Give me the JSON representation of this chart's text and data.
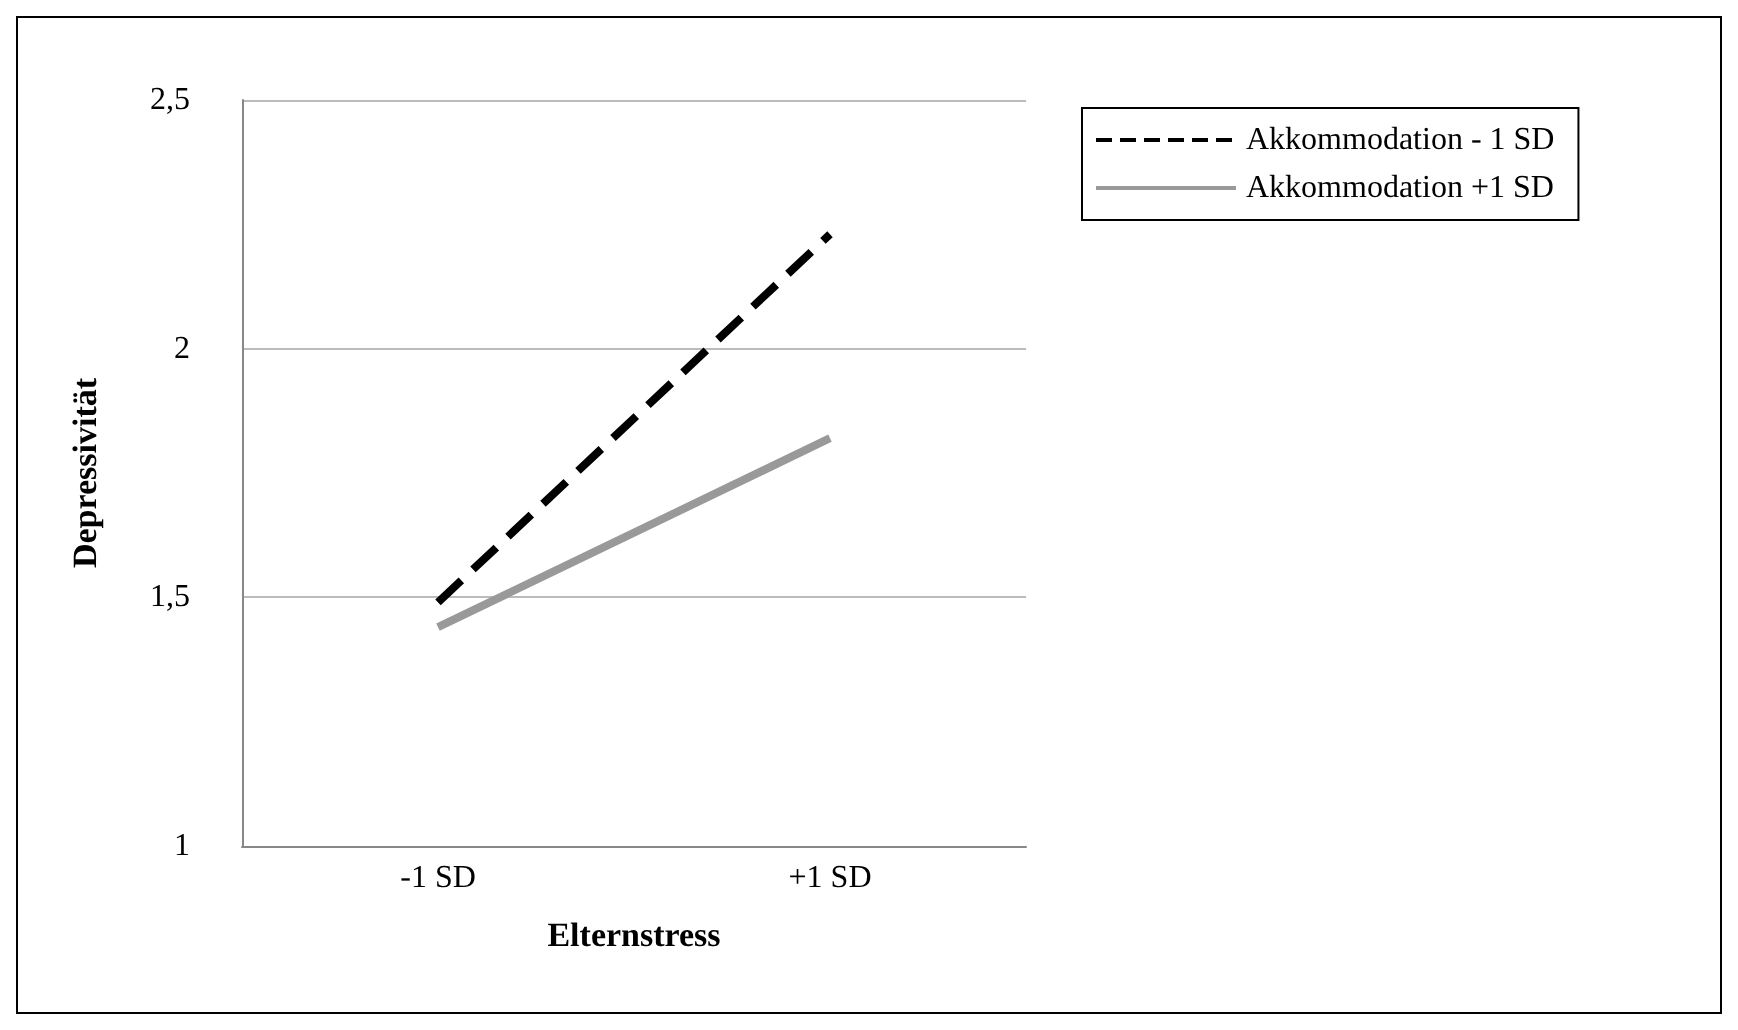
{
  "chart_data": {
    "type": "line",
    "xlabel": "Elternstress",
    "ylabel": "Depressivität",
    "categories": [
      "-1 SD",
      "+1 SD"
    ],
    "series": [
      {
        "name": "Akkommodation - 1 SD",
        "color": "#000000",
        "values": [
          1.49,
          2.23
        ],
        "line_style": "dashed"
      },
      {
        "name": "Akkommodation +1 SD",
        "color": "#999999",
        "values": [
          1.44,
          1.82
        ],
        "line_style": "solid"
      }
    ],
    "ylim": [
      1,
      2.5
    ],
    "yticks": [
      {
        "value": 1,
        "label": "1"
      },
      {
        "value": 1.5,
        "label": "1,5"
      },
      {
        "value": 2,
        "label": "2"
      },
      {
        "value": 2.5,
        "label": "2,5"
      }
    ],
    "grid": "y",
    "legend": "top right",
    "marker": "none"
  }
}
